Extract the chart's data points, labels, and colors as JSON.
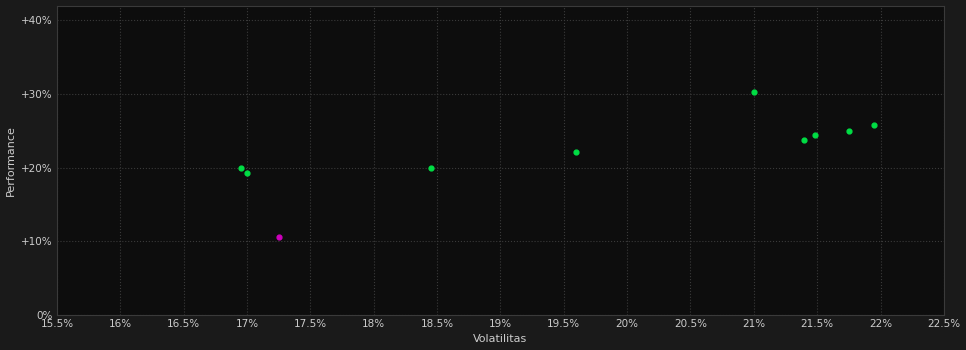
{
  "outer_background": "#1a1a1a",
  "inner_background": "#0d0d0d",
  "grid_color": "#3a3a3a",
  "text_color": "#cccccc",
  "xlabel": "Volatilitas",
  "ylabel": "Performance",
  "xlim": [
    0.155,
    0.225
  ],
  "ylim": [
    0.0,
    0.42
  ],
  "xticks": [
    0.155,
    0.16,
    0.165,
    0.17,
    0.175,
    0.18,
    0.185,
    0.19,
    0.195,
    0.2,
    0.205,
    0.21,
    0.215,
    0.22,
    0.225
  ],
  "yticks": [
    0.0,
    0.1,
    0.2,
    0.3,
    0.4
  ],
  "ytick_labels": [
    "0%",
    "+10%",
    "+20%",
    "+30%",
    "+40%"
  ],
  "xtick_labels": [
    "15.5%",
    "16%",
    "16.5%",
    "17%",
    "17.5%",
    "18%",
    "18.5%",
    "19%",
    "19.5%",
    "20%",
    "20.5%",
    "21%",
    "21.5%",
    "22%",
    "22.5%"
  ],
  "green_points": [
    [
      0.1695,
      0.2
    ],
    [
      0.17,
      0.193
    ],
    [
      0.1845,
      0.2
    ],
    [
      0.196,
      0.221
    ],
    [
      0.21,
      0.302
    ],
    [
      0.214,
      0.238
    ],
    [
      0.2148,
      0.244
    ],
    [
      0.2175,
      0.25
    ],
    [
      0.2195,
      0.258
    ]
  ],
  "magenta_points": [
    [
      0.1725,
      0.105
    ]
  ],
  "point_size": 12,
  "green_color": "#00dd44",
  "magenta_color": "#cc00bb",
  "xlabel_fontsize": 8,
  "ylabel_fontsize": 8,
  "tick_fontsize": 7.5,
  "grid_linestyle": ":",
  "grid_linewidth": 0.8
}
